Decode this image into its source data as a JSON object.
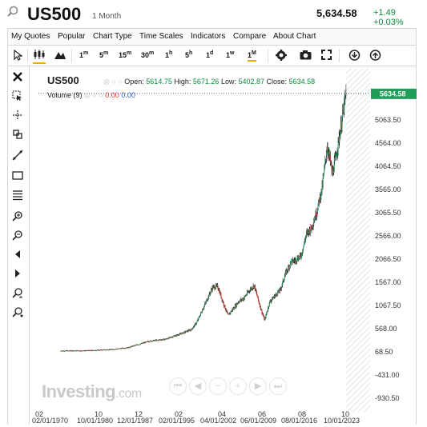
{
  "header": {
    "symbol": "US500",
    "period": "1 Month",
    "price": "5,634.58",
    "change": "+1.49 +0.03%"
  },
  "menu": [
    "My Quotes",
    "Popular",
    "Chart Type",
    "Time Scales",
    "Indicators",
    "Compare",
    "About Chart"
  ],
  "toolbar": {
    "timescales": [
      {
        "n": "1",
        "u": "m"
      },
      {
        "n": "5",
        "u": "m"
      },
      {
        "n": "15",
        "u": "m"
      },
      {
        "n": "30",
        "u": "m"
      },
      {
        "n": "1",
        "u": "h"
      },
      {
        "n": "5",
        "u": "h"
      },
      {
        "n": "1",
        "u": "d"
      },
      {
        "n": "1",
        "u": "w"
      },
      {
        "n": "1",
        "u": "M"
      }
    ],
    "selected": "1M"
  },
  "legend": {
    "symbol": "US500",
    "open_label": "Open:",
    "open": "5614.75",
    "high_label": "High:",
    "high": "5671.26",
    "low_label": "Low:",
    "low": "5402.87",
    "close_label": "Close:",
    "close": "5634.58",
    "volume_label": "Volume (9)",
    "volume_a": "0.00",
    "volume_b": "0.00"
  },
  "watermark": {
    "brand": "Investing",
    "suffix": ".com"
  },
  "colors": {
    "up": "#26a269",
    "down": "#e03030",
    "price_tag": "#1f9e57",
    "accent": "#f2a900"
  },
  "chart_data": {
    "type": "candlestick",
    "y_ticks": [
      "5063.50",
      "4564.00",
      "4064.50",
      "3565.00",
      "3065.50",
      "2566.00",
      "2066.50",
      "1567.00",
      "1067.50",
      "568.00",
      "68.50",
      "-431.00",
      "-930.50"
    ],
    "x_ticks_top": [
      "02",
      "10",
      "12",
      "02",
      "04",
      "06",
      "08",
      "10"
    ],
    "x_ticks_bottom": [
      "02/01/1970",
      "10/01/1980",
      "12/01/1987",
      "02/01/1995",
      "04/01/2002",
      "06/01/2009",
      "08/01/2016",
      "10/01/2023"
    ],
    "last_price": "5634.58",
    "ylim": [
      -930.5,
      5634.58
    ],
    "series": [
      {
        "x": 1970,
        "y": 90
      },
      {
        "x": 1975,
        "y": 95
      },
      {
        "x": 1980,
        "y": 120
      },
      {
        "x": 1983,
        "y": 165
      },
      {
        "x": 1987,
        "y": 300
      },
      {
        "x": 1990,
        "y": 340
      },
      {
        "x": 1993,
        "y": 460
      },
      {
        "x": 1995,
        "y": 550
      },
      {
        "x": 1996,
        "y": 700
      },
      {
        "x": 1997,
        "y": 950
      },
      {
        "x": 1998,
        "y": 1200
      },
      {
        "x": 1999,
        "y": 1450
      },
      {
        "x": 2000,
        "y": 1480
      },
      {
        "x": 2001,
        "y": 1150
      },
      {
        "x": 2002,
        "y": 850
      },
      {
        "x": 2003,
        "y": 1000
      },
      {
        "x": 2004,
        "y": 1150
      },
      {
        "x": 2005,
        "y": 1220
      },
      {
        "x": 2006,
        "y": 1380
      },
      {
        "x": 2007,
        "y": 1500
      },
      {
        "x": 2008,
        "y": 1100
      },
      {
        "x": 2009,
        "y": 750
      },
      {
        "x": 2010,
        "y": 1150
      },
      {
        "x": 2011,
        "y": 1280
      },
      {
        "x": 2012,
        "y": 1400
      },
      {
        "x": 2013,
        "y": 1750
      },
      {
        "x": 2014,
        "y": 2000
      },
      {
        "x": 2015,
        "y": 2050
      },
      {
        "x": 2016,
        "y": 2150
      },
      {
        "x": 2017,
        "y": 2600
      },
      {
        "x": 2018,
        "y": 2750
      },
      {
        "x": 2019,
        "y": 3100
      },
      {
        "x": 2020,
        "y": 3600
      },
      {
        "x": 2021,
        "y": 4500
      },
      {
        "x": 2022,
        "y": 3900
      },
      {
        "x": 2023,
        "y": 4500
      },
      {
        "x": 2024,
        "y": 5200
      },
      {
        "x": 2024.6,
        "y": 5634.58
      }
    ]
  }
}
